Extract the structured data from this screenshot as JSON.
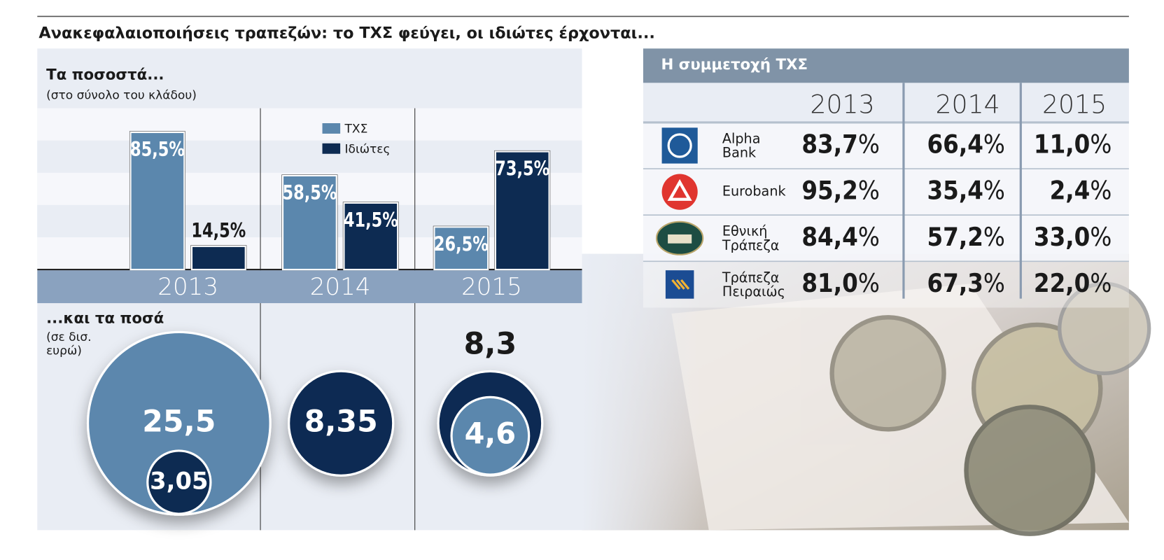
{
  "title": "Ανακεφαλαιοποιήσεις τραπεζών: το ΤΧΣ φεύγει, οι ιδιώτες έρχονται...",
  "chart_data": [
    {
      "type": "bar",
      "title": "Τα ποσοστά...",
      "subtitle": "(στο σύνολο του κλάδου)",
      "categories": [
        "2013",
        "2014",
        "2015"
      ],
      "series": [
        {
          "name": "ΤΧΣ",
          "color": "#5b87ad",
          "values": [
            85.5,
            58.5,
            26.5
          ],
          "value_labels": [
            "85,5%",
            "58,5%",
            "26,5%"
          ]
        },
        {
          "name": "Ιδιώτες",
          "color": "#0d2b52",
          "values": [
            14.5,
            41.5,
            73.5
          ],
          "value_labels": [
            "14,5%",
            "41,5%",
            "73,5%"
          ]
        }
      ],
      "ylim": [
        0,
        100
      ]
    },
    {
      "type": "bubble",
      "title": "...και τα ποσά",
      "subtitle": "(σε δισ. ευρώ)",
      "categories": [
        "2013",
        "2014",
        "2015"
      ],
      "series": [
        {
          "color": "#5b87ad",
          "values": [
            25.5,
            null,
            4.6
          ],
          "value_labels": [
            "25,5",
            null,
            "4,6"
          ]
        },
        {
          "color": "#0d2b52",
          "values": [
            3.05,
            8.35,
            8.3
          ],
          "value_labels": [
            "3,05",
            "8,35",
            "8,3"
          ]
        }
      ]
    }
  ],
  "table": {
    "title": "Η συμμετοχή ΤΧΣ",
    "columns": [
      "2013",
      "2014",
      "2015"
    ],
    "rows": [
      {
        "bank": "Alpha Bank",
        "values": [
          "83,7%",
          "66,4%",
          "11,0%"
        ]
      },
      {
        "bank": "Eurobank",
        "values": [
          "95,2%",
          "35,4%",
          "2,4%"
        ]
      },
      {
        "bank": "Εθνική Τράπεζα",
        "values": [
          "84,4%",
          "57,2%",
          "33,0%"
        ]
      },
      {
        "bank": "Τράπεζα Πειραιώς",
        "values": [
          "81,0%",
          "67,3%",
          "22,0%"
        ]
      }
    ]
  }
}
